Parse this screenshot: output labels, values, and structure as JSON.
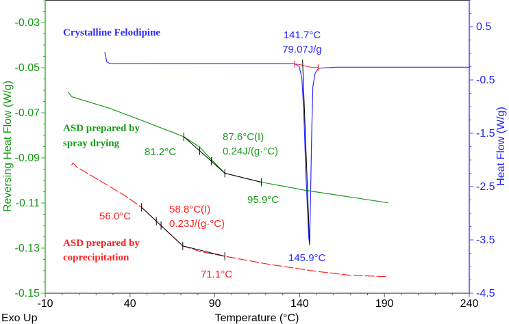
{
  "chart_data": {
    "type": "line",
    "xlabel": "Temperature (°C)",
    "ylabel_left": "Reversing Heat Flow (W/g)",
    "ylabel_right": "Heat Flow (W/g)",
    "corner_label": "Exo Up",
    "xlim": [
      -10,
      240
    ],
    "ylim_left": [
      -0.15,
      -0.02
    ],
    "ylim_right": [
      -4.5,
      1.0
    ],
    "x_ticks": [
      "-10",
      "40",
      "90",
      "140",
      "190",
      "240"
    ],
    "y_left_ticks": [
      "-0.03",
      "-0.05",
      "-0.07",
      "-0.09",
      "-0.11",
      "-0.13",
      "-0.15"
    ],
    "y_right_ticks": [
      "0.5",
      "-0.5",
      "-1.5",
      "-2.5",
      "-3.5",
      "-4.5"
    ],
    "grid": false,
    "colors": {
      "left_axis": "#119911",
      "right_axis": "#2222ff",
      "green": "#1a9a1a",
      "red": "#ff2020",
      "blue": "#2a2aff",
      "analysis": "#000000"
    },
    "series": [
      {
        "name": "Crystalline Felodipine",
        "axis": "right",
        "color": "#2a2aff",
        "dash": false,
        "x": [
          25.1,
          26.3,
          28.0,
          137.0,
          139.7,
          141.3,
          142.4,
          143.8,
          145.4,
          145.9,
          146.4,
          147.1,
          147.8,
          149.1,
          151.1,
          161.2,
          240
        ],
        "y": [
          0.02,
          -0.16,
          -0.19,
          -0.195,
          -0.246,
          -0.46,
          -1.06,
          -2.35,
          -3.47,
          -3.57,
          -2.78,
          -1.49,
          -0.63,
          -0.375,
          -0.28,
          -0.26,
          -0.26
        ]
      },
      {
        "name": "ASD prepared by spray drying",
        "axis": "left",
        "color": "#1a9a1a",
        "dash": false,
        "x": [
          3.5,
          5.7,
          28.0,
          50.9,
          71.7,
          81.1,
          87.9,
          95.9,
          117.5,
          143.7,
          192.2
        ],
        "y": [
          -0.0607,
          -0.0629,
          -0.068,
          -0.0745,
          -0.0806,
          -0.0852,
          -0.0907,
          -0.0968,
          -0.1008,
          -0.1044,
          -0.1099
        ]
      },
      {
        "name": "ASD prepared by coprecipitation",
        "axis": "left",
        "color": "#ff2020",
        "dash": true,
        "x": [
          5.5,
          6.4,
          8.5,
          37.4,
          46.8,
          58.3,
          71.1,
          81.8,
          95.9,
          122.2,
          149.1,
          169.3,
          192.2
        ],
        "y": [
          -0.0932,
          -0.0922,
          -0.094,
          -0.1069,
          -0.1119,
          -0.12,
          -0.129,
          -0.1316,
          -0.1336,
          -0.1372,
          -0.1402,
          -0.142,
          -0.1427
        ]
      }
    ],
    "analysis": [
      {
        "axis": "left",
        "x": [
          71.7,
          95.9,
          117.5
        ],
        "y": [
          -0.0806,
          -0.0968,
          -0.1008
        ],
        "marks_x": [
          71.7,
          81.1,
          87.9,
          95.9,
          117.5
        ]
      },
      {
        "axis": "left",
        "x": [
          46.8,
          71.1,
          95.9
        ],
        "y": [
          -0.1119,
          -0.129,
          -0.1336
        ],
        "marks_x": [
          46.8,
          55.5,
          58.3,
          71.1,
          95.9
        ]
      },
      {
        "axis": "right",
        "x": [
          141.7,
          145.9
        ],
        "y": [
          -0.12,
          -3.6
        ],
        "marks_x": []
      }
    ],
    "peak_integration": {
      "x": [
        137.0,
        151.0
      ],
      "y": [
        -0.2,
        -0.27
      ]
    },
    "annotations": {
      "felodipine_name": "Crystalline Felodipine",
      "felodipine_onset": "141.7°C",
      "felodipine_enthalpy": "79.07J/g",
      "felodipine_peak": "145.9°C",
      "spray_name_1": "ASD prepared by",
      "spray_name_2": "spray drying",
      "spray_onset": "81.2°C",
      "spray_mid": "87.6°C(I)",
      "spray_dcp": "0.24J/(g·°C)",
      "spray_end": "95.9°C",
      "copre_name_1": "ASD prepared by",
      "copre_name_2": "coprecipitation",
      "copre_onset": "56.0°C",
      "copre_mid": "58.8°C(I)",
      "copre_dcp": "0.23J/(g·°C)",
      "copre_end": "71.1°C"
    }
  }
}
